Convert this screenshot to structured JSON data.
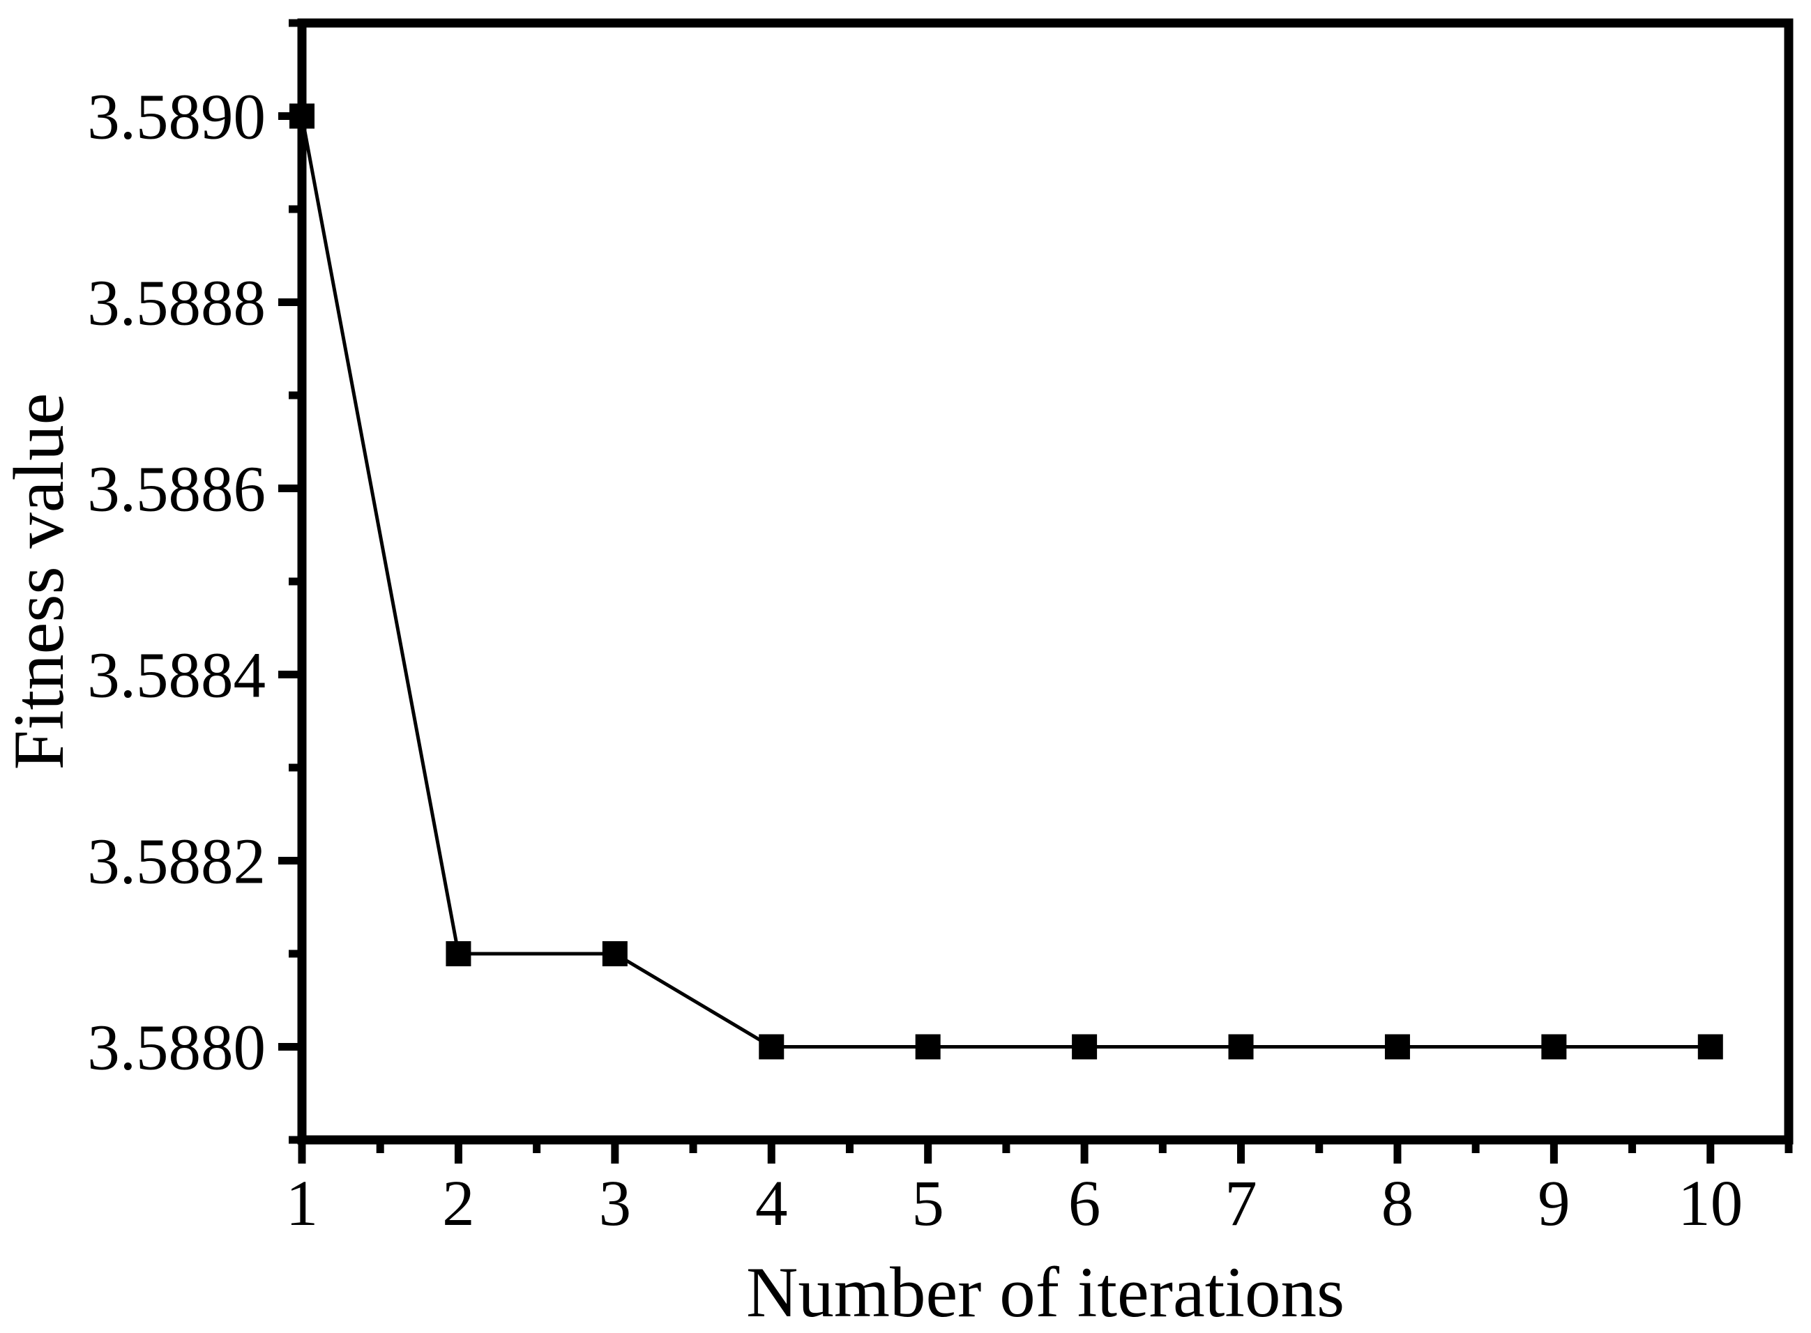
{
  "figure": {
    "background": "#ffffff",
    "frame_color": "#000000",
    "text_color": "#000000"
  },
  "chart_data": {
    "type": "line",
    "xlabel": "Number of iterations",
    "ylabel": "Fitness value",
    "x": [
      1,
      2,
      3,
      4,
      5,
      6,
      7,
      8,
      9,
      10
    ],
    "y": [
      3.589,
      3.5881,
      3.5881,
      3.588,
      3.588,
      3.588,
      3.588,
      3.588,
      3.588,
      3.588
    ],
    "xlim": [
      1,
      10.5
    ],
    "ylim": [
      3.5879,
      3.5891
    ],
    "x_major_ticks": [
      1,
      2,
      3,
      4,
      5,
      6,
      7,
      8,
      9,
      10
    ],
    "x_tick_labels": [
      "1",
      "2",
      "3",
      "4",
      "5",
      "6",
      "7",
      "8",
      "9",
      "10"
    ],
    "x_minor_tick_step": 0.5,
    "y_major_ticks": [
      3.588,
      3.5882,
      3.5884,
      3.5886,
      3.5888,
      3.589
    ],
    "y_tick_labels": [
      "3.5880",
      "3.5882",
      "3.5884",
      "3.5886",
      "3.5888",
      "3.5890"
    ],
    "y_minor_tick_step": 0.0001,
    "marker": "filled-square",
    "marker_size_px": 36,
    "line_color": "#000000",
    "marker_color": "#000000",
    "frame_color": "#000000",
    "grid": false,
    "legend_position": "none",
    "tick_direction": "out"
  }
}
